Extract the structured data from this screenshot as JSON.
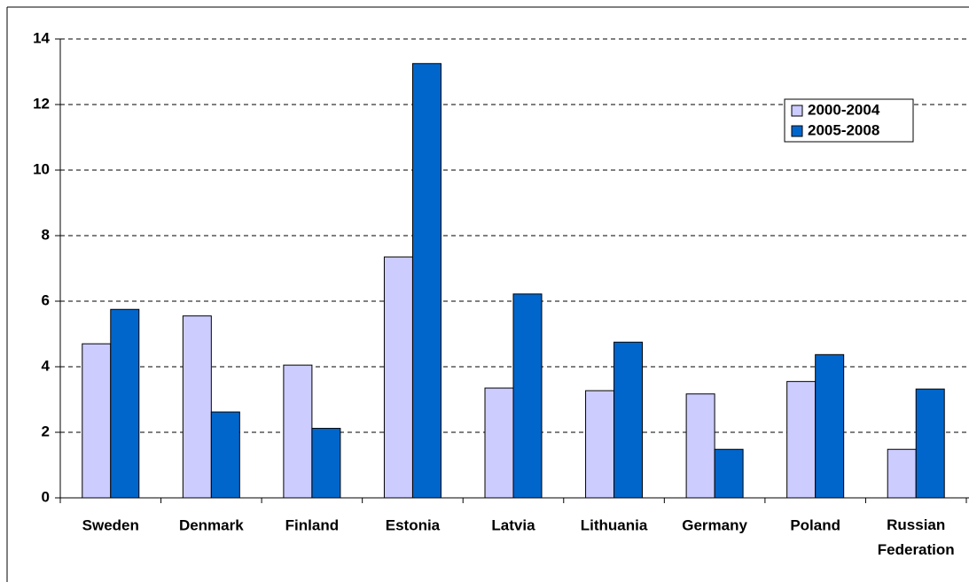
{
  "chart_data": {
    "type": "bar",
    "categories": [
      "Sweden",
      "Denmark",
      "Finland",
      "Estonia",
      "Latvia",
      "Lithuania",
      "Germany",
      "Poland",
      "Russian Federation"
    ],
    "series": [
      {
        "name": "2000-2004",
        "color": "#ccccff",
        "values": [
          4.7,
          5.55,
          4.05,
          7.35,
          3.35,
          3.27,
          3.17,
          3.55,
          1.48
        ]
      },
      {
        "name": "2005-2008",
        "color": "#0066cc",
        "values": [
          5.75,
          2.62,
          2.12,
          13.25,
          6.22,
          4.75,
          1.48,
          4.37,
          3.32
        ]
      }
    ],
    "ylim": [
      0,
      14
    ],
    "yticks": [
      0,
      2,
      4,
      6,
      8,
      10,
      12,
      14
    ],
    "grid": true,
    "legend": "upper right"
  }
}
